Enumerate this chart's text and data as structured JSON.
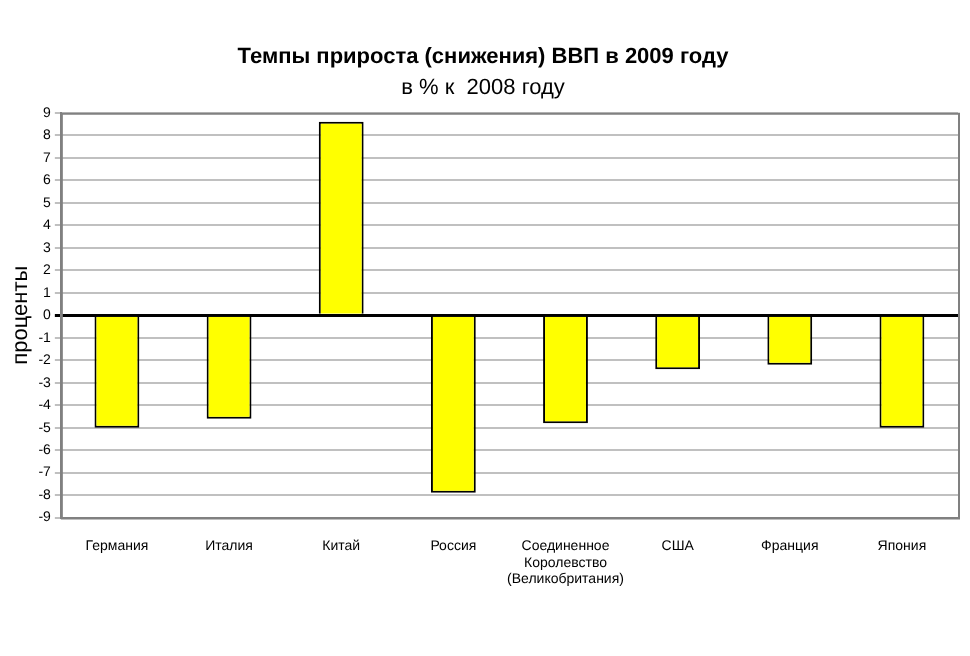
{
  "chart_data": {
    "type": "bar",
    "title": "Темпы прироста (снижения) ВВП в 2009 году",
    "subtitle": "в % к  2008 году",
    "ylabel": "проценты",
    "categories": [
      "Германия",
      "Италия",
      "Китай",
      "Россия",
      "Соединенное Королевство (Великобритания)",
      "США",
      "Франция",
      "Япония"
    ],
    "values": [
      -5.0,
      -4.6,
      8.6,
      -7.9,
      -4.8,
      -2.4,
      -2.2,
      -5.0
    ],
    "color": "#ffff00",
    "ylim": [
      -9,
      9
    ],
    "yticks": [
      -9,
      -8,
      -7,
      -6,
      -5,
      -4,
      -3,
      -2,
      -1,
      0,
      1,
      2,
      3,
      4,
      5,
      6,
      7,
      8,
      9
    ],
    "grid": "y",
    "legend": false
  }
}
